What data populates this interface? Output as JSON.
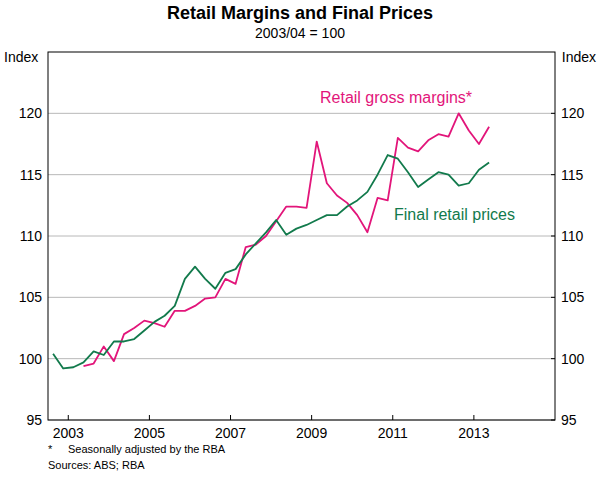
{
  "chart_data": {
    "type": "line",
    "title": "Retail Margins and Final Prices",
    "subtitle": "2003/04 = 100",
    "ylabel": "Index",
    "y2label": "Index",
    "x": [
      2002.625,
      2002.875,
      2003.125,
      2003.375,
      2003.625,
      2003.875,
      2004.125,
      2004.375,
      2004.625,
      2004.875,
      2005.125,
      2005.375,
      2005.625,
      2005.875,
      2006.125,
      2006.375,
      2006.625,
      2006.875,
      2007.125,
      2007.375,
      2007.625,
      2007.875,
      2008.125,
      2008.375,
      2008.625,
      2008.875,
      2009.125,
      2009.375,
      2009.625,
      2009.875,
      2010.125,
      2010.375,
      2010.625,
      2010.875,
      2011.125,
      2011.375,
      2011.625,
      2011.875,
      2012.125,
      2012.375,
      2012.625,
      2012.875,
      2013.125,
      2013.375
    ],
    "series": [
      {
        "name": "Retail gross margins*",
        "color": "#e2157a",
        "values": [
          null,
          null,
          null,
          99.4,
          99.6,
          101.0,
          99.8,
          102.0,
          102.5,
          103.1,
          102.9,
          102.6,
          103.9,
          103.9,
          104.3,
          104.9,
          105.0,
          106.5,
          106.1,
          109.1,
          109.3,
          110.0,
          111.2,
          112.4,
          112.4,
          112.3,
          117.7,
          114.3,
          113.3,
          112.7,
          111.7,
          110.3,
          113.1,
          112.9,
          118.0,
          117.2,
          116.9,
          117.8,
          118.3,
          118.1,
          120.0,
          118.6,
          117.5,
          118.9
        ]
      },
      {
        "name": "Final retail prices",
        "color": "#127a4c",
        "values": [
          100.4,
          99.2,
          99.3,
          99.7,
          100.6,
          100.3,
          101.4,
          101.4,
          101.6,
          102.3,
          103.0,
          103.5,
          104.3,
          106.5,
          107.5,
          106.5,
          105.7,
          107.0,
          107.3,
          108.5,
          109.4,
          110.3,
          111.3,
          110.1,
          110.6,
          110.9,
          111.3,
          111.7,
          111.7,
          112.4,
          112.9,
          113.6,
          115.0,
          116.6,
          116.3,
          115.2,
          114.0,
          114.6,
          115.2,
          115.0,
          114.1,
          114.3,
          115.4,
          116.0
        ]
      }
    ],
    "xlim": [
      2002.5,
      2015
    ],
    "xticks": [
      2003,
      2005,
      2007,
      2009,
      2011,
      2013
    ],
    "ylim": [
      95,
      125
    ],
    "yticks": [
      95,
      100,
      105,
      110,
      115,
      120
    ],
    "y2lim": [
      95,
      125
    ],
    "y2ticks": [
      95,
      100,
      105,
      110,
      115,
      120
    ],
    "grid": true,
    "notes": [
      {
        "marker": "*",
        "text": "Seasonally adjusted by the RBA"
      }
    ],
    "source": "Sources: ABS; RBA"
  }
}
